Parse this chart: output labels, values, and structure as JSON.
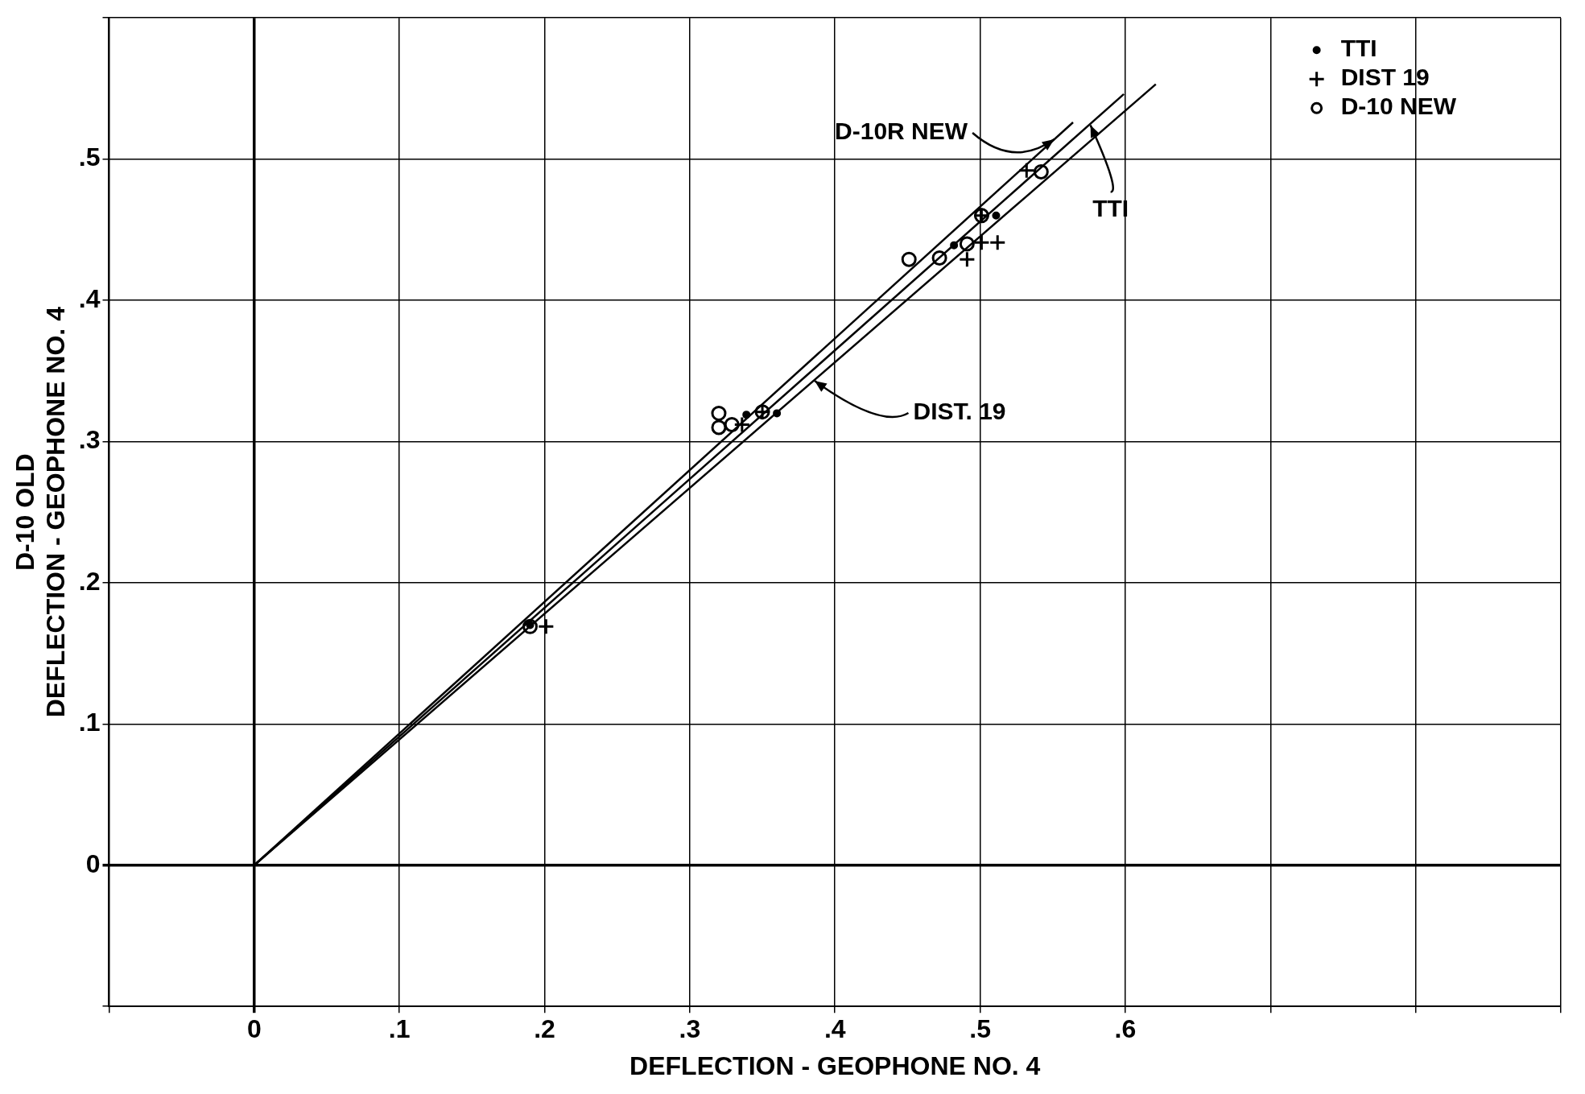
{
  "chart_data": {
    "type": "scatter",
    "xlabel": "DEFLECTION - GEOPHONE NO. 4",
    "ylabel": "D-10 OLD\nDEFLECTION - GEOPHONE NO. 4",
    "xlim": [
      -0.1,
      0.9
    ],
    "ylim": [
      -0.1,
      0.6
    ],
    "xticks": [
      {
        "value": -0.1,
        "label": null
      },
      0,
      {
        "value": 0.1,
        "label": ".1"
      },
      {
        "value": 0.2,
        "label": ".2"
      },
      {
        "value": 0.3,
        "label": ".3"
      },
      {
        "value": 0.4,
        "label": ".4"
      },
      {
        "value": 0.5,
        "label": ".5"
      },
      {
        "value": 0.6,
        "label": ".6"
      },
      {
        "value": 0.7,
        "label": null
      },
      {
        "value": 0.8,
        "label": null
      },
      {
        "value": 0.9,
        "label": null
      }
    ],
    "yticks": [
      {
        "value": -0.1,
        "label": null
      },
      0,
      {
        "value": 0.1,
        "label": ".1"
      },
      {
        "value": 0.2,
        "label": ".2"
      },
      {
        "value": 0.3,
        "label": ".3"
      },
      {
        "value": 0.4,
        "label": ".4"
      },
      {
        "value": 0.5,
        "label": ".5"
      },
      {
        "value": 0.6,
        "label": null
      }
    ],
    "grid": true,
    "legend": "top right",
    "series": [
      {
        "name": "TTI",
        "color": "#000000",
        "marker": "circle",
        "x": [
          0.19,
          0.339,
          0.36,
          0.482,
          0.511
        ],
        "values": [
          0.17,
          0.319,
          0.32,
          0.439,
          0.46
        ]
      },
      {
        "name": "DIST 19",
        "color": "#000000",
        "marker": "cross",
        "x": [
          0.201,
          0.336,
          0.35,
          0.491,
          0.501,
          0.512,
          0.501,
          0.532
        ],
        "values": [
          0.169,
          0.312,
          0.321,
          0.429,
          0.441,
          0.441,
          0.46,
          0.492
        ]
      },
      {
        "name": "D-10 NEW",
        "color": "#000000",
        "marker": "circle",
        "x": [
          0.19,
          0.32,
          0.32,
          0.329,
          0.35,
          0.451,
          0.472,
          0.491,
          0.501,
          0.542
        ],
        "values": [
          0.169,
          0.32,
          0.31,
          0.312,
          0.321,
          0.429,
          0.43,
          0.44,
          0.46,
          0.491
        ]
      },
      {
        "type": "line",
        "color": "#000000",
        "marker": "none",
        "x": [
          0,
          0.564
        ],
        "values": [
          0,
          0.526
        ]
      },
      {
        "type": "line",
        "color": "#000000",
        "marker": "none",
        "x": [
          0,
          0.599
        ],
        "values": [
          0,
          0.546
        ]
      },
      {
        "type": "line",
        "color": "#000000",
        "marker": "none",
        "x": [
          0,
          0.621
        ],
        "values": [
          0,
          0.553
        ]
      }
    ],
    "annotations": [
      {
        "text": "D-10R NEW",
        "x": 0.551,
        "y": 0.514
      },
      {
        "text": "TTI",
        "x": 0.576,
        "y": 0.524
      },
      {
        "text": "DIST. 19",
        "x": 0.386,
        "y": 0.343
      }
    ]
  }
}
